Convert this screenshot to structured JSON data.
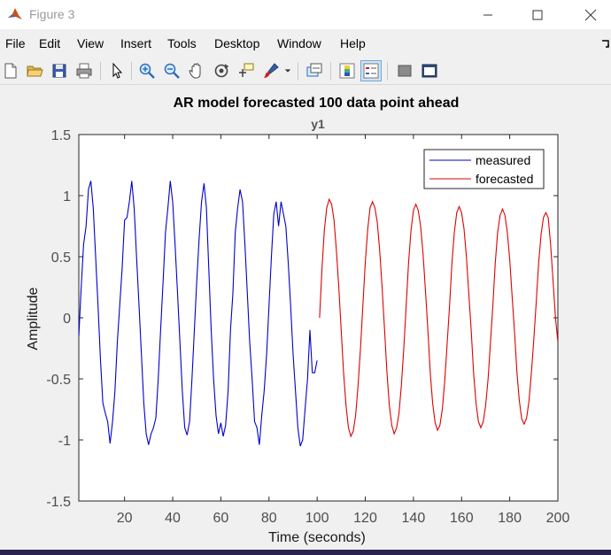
{
  "window": {
    "title": "Figure 3"
  },
  "menu": [
    "File",
    "Edit",
    "View",
    "Insert",
    "Tools",
    "Desktop",
    "Window",
    "Help"
  ],
  "toolbar": {
    "tools": [
      "new-figure",
      "open-file",
      "save-figure",
      "print-figure",
      "edit-plot",
      "zoom-in",
      "zoom-out",
      "pan",
      "rotate-3d",
      "data-cursor",
      "brush",
      "link-plot",
      "insert-colorbar",
      "insert-legend",
      "hide-plot-tools",
      "show-plot-tools"
    ]
  },
  "chart_data": {
    "type": "line",
    "title": "AR model forecasted 100 data point ahead",
    "subtitle": "y1",
    "xlabel": "Time (seconds)",
    "ylabel": "Amplitude",
    "xlim": [
      1,
      200
    ],
    "ylim": [
      -1.5,
      1.5
    ],
    "xticks": [
      20,
      40,
      60,
      80,
      100,
      120,
      140,
      160,
      180,
      200
    ],
    "yticks": [
      -1.5,
      -1,
      -0.5,
      0,
      0.5,
      1,
      1.5
    ],
    "ytick_labels": [
      "-1.5",
      "-1",
      "-0.5",
      "0",
      "0.5",
      "1",
      "1.5"
    ],
    "grid": false,
    "legend_position": "top-right",
    "series": [
      {
        "name": "measured",
        "color": "#0000cc",
        "x": [
          1,
          2,
          3,
          4,
          5,
          6,
          7,
          8,
          9,
          10,
          11,
          12,
          13,
          14,
          15,
          16,
          17,
          18,
          19,
          20,
          21,
          22,
          23,
          24,
          25,
          26,
          27,
          28,
          29,
          30,
          31,
          32,
          33,
          34,
          35,
          36,
          37,
          38,
          39,
          40,
          41,
          42,
          43,
          44,
          45,
          46,
          47,
          48,
          49,
          50,
          51,
          52,
          53,
          54,
          55,
          56,
          57,
          58,
          59,
          60,
          61,
          62,
          63,
          64,
          65,
          66,
          67,
          68,
          69,
          70,
          71,
          72,
          73,
          74,
          75,
          76,
          77,
          78,
          79,
          80,
          81,
          82,
          83,
          84,
          85,
          86,
          87,
          88,
          89,
          90,
          91,
          92,
          93,
          94,
          95,
          96,
          97,
          98,
          99,
          100
        ],
        "y": [
          -0.15,
          0.25,
          0.6,
          0.75,
          1.05,
          1.12,
          0.9,
          0.5,
          0.1,
          -0.35,
          -0.7,
          -0.78,
          -0.85,
          -1.03,
          -0.85,
          -0.6,
          -0.2,
          0.1,
          0.4,
          0.8,
          0.82,
          0.95,
          1.12,
          0.9,
          0.5,
          0.1,
          -0.3,
          -0.7,
          -0.95,
          -1.04,
          -0.95,
          -0.9,
          -0.82,
          -0.5,
          -0.1,
          0.3,
          0.7,
          0.9,
          1.12,
          0.95,
          0.6,
          0.2,
          -0.2,
          -0.6,
          -0.9,
          -0.96,
          -0.85,
          -0.5,
          -0.1,
          0.3,
          0.65,
          0.95,
          1.1,
          0.9,
          0.4,
          -0.1,
          -0.5,
          -0.8,
          -0.95,
          -0.86,
          -0.97,
          -0.88,
          -0.6,
          -0.1,
          0.2,
          0.7,
          0.9,
          1.05,
          0.95,
          0.6,
          0.2,
          -0.2,
          -0.5,
          -0.85,
          -0.9,
          -1.04,
          -0.8,
          -0.6,
          -0.3,
          0.1,
          0.5,
          0.85,
          0.95,
          0.75,
          0.95,
          0.85,
          0.75,
          0.45,
          0.1,
          -0.3,
          -0.6,
          -0.9,
          -1.05,
          -1.0,
          -0.75,
          -0.5,
          -0.1,
          -0.45,
          -0.45,
          -0.35
        ]
      },
      {
        "name": "forecasted",
        "color": "#dd0000",
        "x": [
          101,
          102,
          103,
          104,
          105,
          106,
          107,
          108,
          109,
          110,
          111,
          112,
          113,
          114,
          115,
          116,
          117,
          118,
          119,
          120,
          121,
          122,
          123,
          124,
          125,
          126,
          127,
          128,
          129,
          130,
          131,
          132,
          133,
          134,
          135,
          136,
          137,
          138,
          139,
          140,
          141,
          142,
          143,
          144,
          145,
          146,
          147,
          148,
          149,
          150,
          151,
          152,
          153,
          154,
          155,
          156,
          157,
          158,
          159,
          160,
          161,
          162,
          163,
          164,
          165,
          166,
          167,
          168,
          169,
          170,
          171,
          172,
          173,
          174,
          175,
          176,
          177,
          178,
          179,
          180,
          181,
          182,
          183,
          184,
          185,
          186,
          187,
          188,
          189,
          190,
          191,
          192,
          193,
          194,
          195,
          196,
          197,
          198,
          199,
          200
        ],
        "y": [
          0.0,
          0.4,
          0.72,
          0.9,
          0.97,
          0.93,
          0.8,
          0.55,
          0.25,
          -0.1,
          -0.45,
          -0.72,
          -0.9,
          -0.97,
          -0.93,
          -0.8,
          -0.55,
          -0.25,
          0.1,
          0.45,
          0.72,
          0.9,
          0.95,
          0.9,
          0.78,
          0.55,
          0.25,
          -0.1,
          -0.45,
          -0.72,
          -0.88,
          -0.95,
          -0.9,
          -0.78,
          -0.55,
          -0.25,
          0.1,
          0.45,
          0.72,
          0.88,
          0.93,
          0.88,
          0.75,
          0.52,
          0.22,
          -0.1,
          -0.45,
          -0.7,
          -0.86,
          -0.92,
          -0.88,
          -0.75,
          -0.52,
          -0.22,
          0.1,
          0.45,
          0.7,
          0.86,
          0.91,
          0.86,
          0.73,
          0.5,
          0.2,
          -0.1,
          -0.45,
          -0.7,
          -0.85,
          -0.9,
          -0.85,
          -0.72,
          -0.5,
          -0.2,
          0.1,
          0.45,
          0.7,
          0.84,
          0.89,
          0.84,
          0.7,
          0.48,
          0.18,
          -0.12,
          -0.45,
          -0.68,
          -0.83,
          -0.87,
          -0.82,
          -0.68,
          -0.45,
          -0.18,
          0.12,
          0.45,
          0.68,
          0.82,
          0.86,
          0.82,
          0.6,
          0.3,
          0.0,
          -0.2
        ]
      }
    ]
  }
}
